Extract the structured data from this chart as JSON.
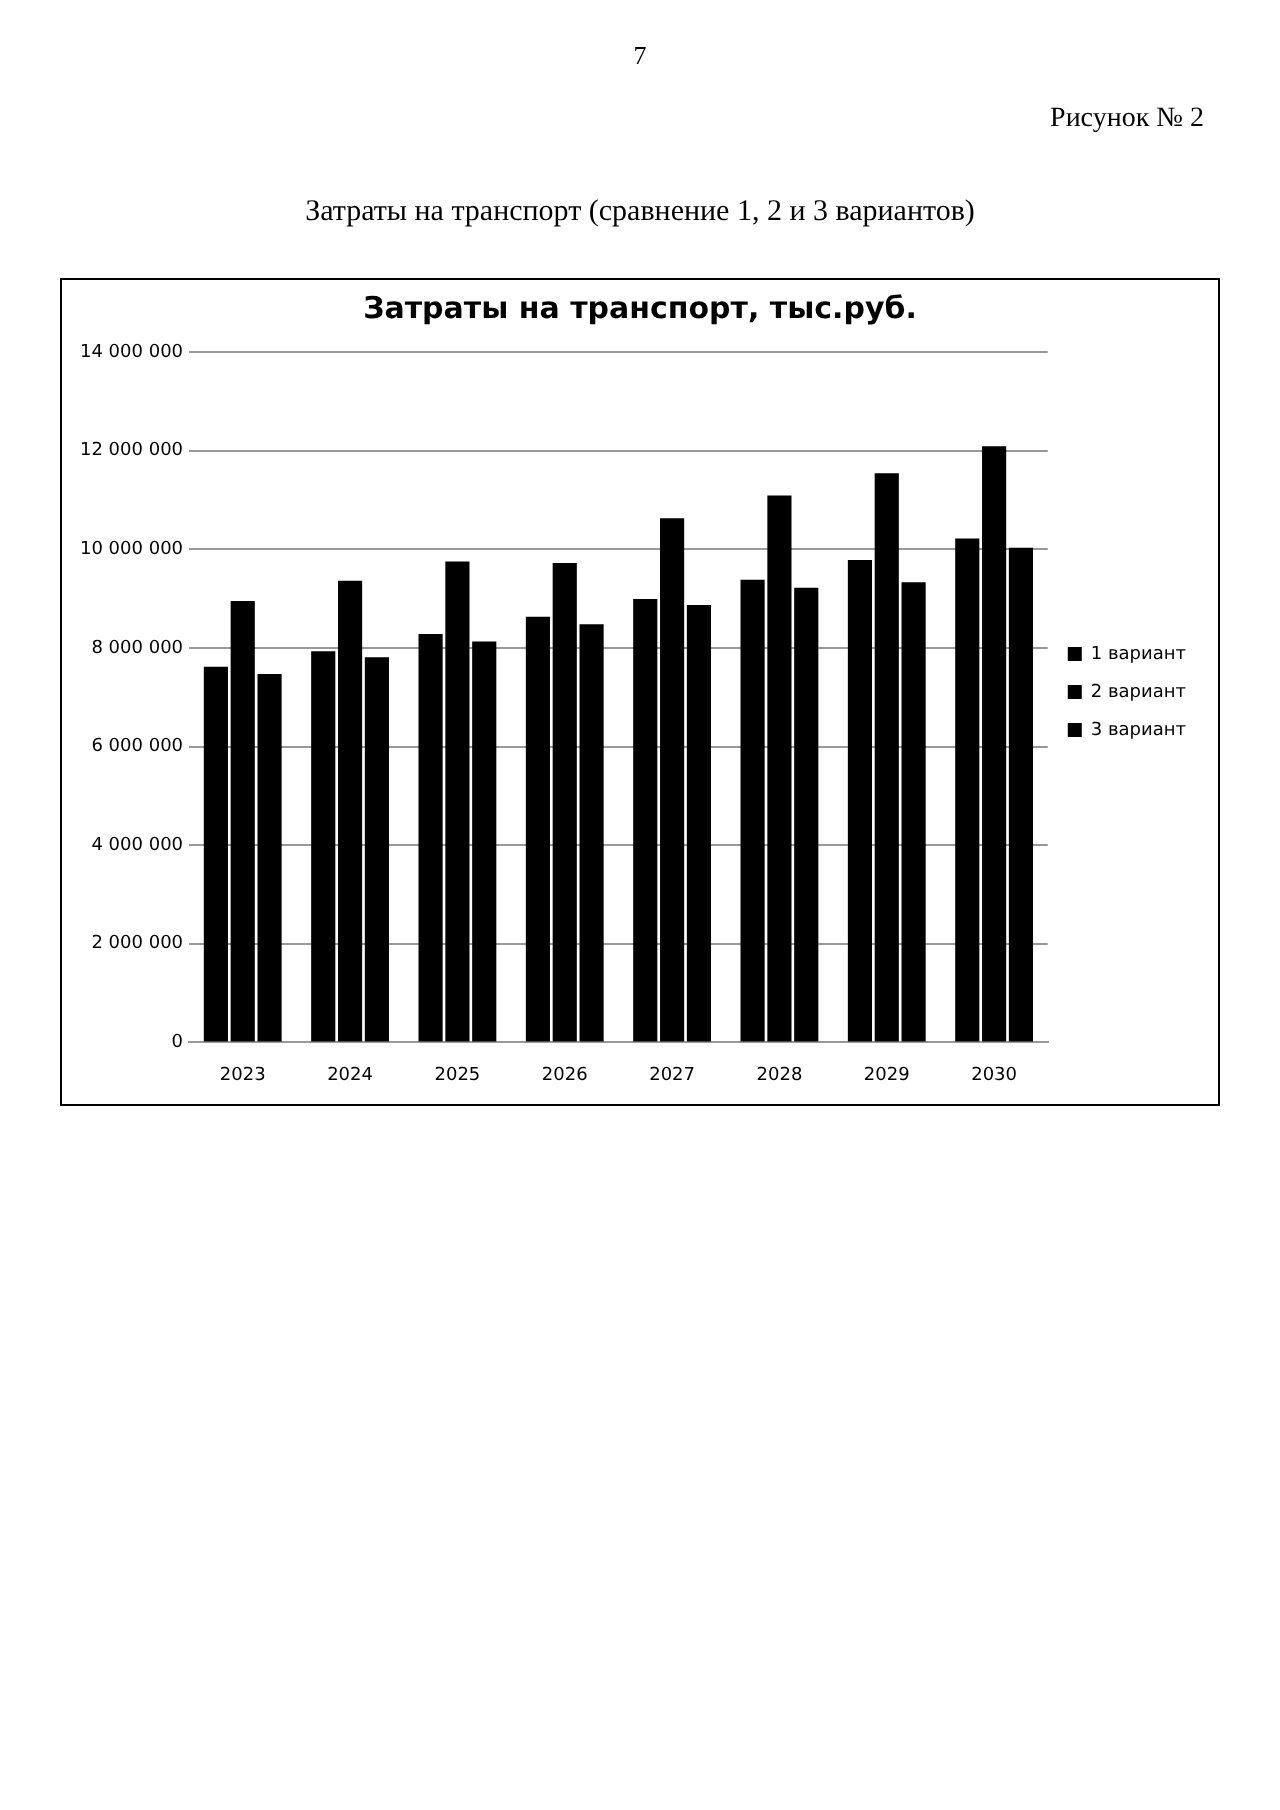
{
  "chart_data": {
    "type": "bar",
    "title": "Затраты на транспорт, тыс.руб.",
    "subtitle": "Затраты на транспорт (сравнение 1, 2 и 3 вариантов)",
    "annotations": [
      "7",
      "Рисунок № 2"
    ],
    "categories": [
      "2023",
      "2024",
      "2025",
      "2026",
      "2027",
      "2028",
      "2029",
      "2030"
    ],
    "series": [
      {
        "name": "1 вариант",
        "color": "#000000",
        "values": [
          7620000,
          7930000,
          8280000,
          8630000,
          8990000,
          9380000,
          9780000,
          10220000
        ]
      },
      {
        "name": "2 вариант",
        "color": "#000000",
        "values": [
          8950000,
          9360000,
          9750000,
          9720000,
          10630000,
          11090000,
          11540000,
          12090000
        ]
      },
      {
        "name": "3 вариант",
        "color": "#000000",
        "values": [
          7470000,
          7810000,
          8130000,
          8480000,
          8870000,
          9220000,
          9330000,
          10030000
        ]
      }
    ],
    "ylim": [
      0,
      14000000
    ],
    "yticks": [
      {
        "value": 0,
        "label": "0"
      },
      {
        "value": 2000000,
        "label": "2 000 000"
      },
      {
        "value": 4000000,
        "label": "4 000 000"
      },
      {
        "value": 6000000,
        "label": "6 000 000"
      },
      {
        "value": 8000000,
        "label": "8 000 000"
      },
      {
        "value": 10000000,
        "label": "10 000 000"
      },
      {
        "value": 12000000,
        "label": "12 000 000"
      },
      {
        "value": 14000000,
        "label": "14 000 000"
      }
    ],
    "grid": "y",
    "legend": "right"
  }
}
